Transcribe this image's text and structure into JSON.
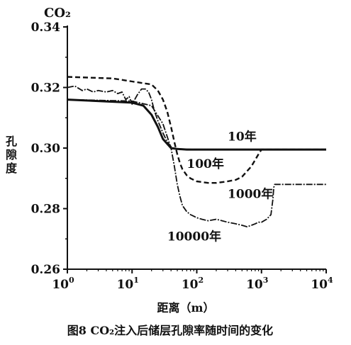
{
  "chart_data": {
    "type": "line",
    "title": "图8 CO₂注入后储层孔隙率随时间的变化",
    "corner_label": "CO₂",
    "ylabel": "孔隙度",
    "xlabel": "距离（m）",
    "xscale": "log",
    "xlim": [
      1,
      10000
    ],
    "ylim": [
      0.26,
      0.34
    ],
    "x_ticks": [
      {
        "value": 1,
        "base": "10",
        "exp": "0"
      },
      {
        "value": 10,
        "base": "10",
        "exp": "1"
      },
      {
        "value": 100,
        "base": "10",
        "exp": "2"
      },
      {
        "value": 1000,
        "base": "10",
        "exp": "3"
      },
      {
        "value": 10000,
        "base": "10",
        "exp": "4"
      }
    ],
    "y_ticks": [
      {
        "value": 0.26,
        "label": "0.26"
      },
      {
        "value": 0.28,
        "label": "0.28"
      },
      {
        "value": 0.3,
        "label": "0.30"
      },
      {
        "value": 0.32,
        "label": "0.32"
      },
      {
        "value": 0.34,
        "label": "0.34"
      }
    ],
    "series": [
      {
        "name": "10年",
        "style": "solid-thick",
        "x": [
          1,
          10,
          15,
          20,
          25,
          30,
          40,
          50,
          70,
          100,
          1000,
          10000
        ],
        "y": [
          0.316,
          0.315,
          0.314,
          0.311,
          0.307,
          0.303,
          0.3,
          0.2997,
          0.2995,
          0.2995,
          0.2995,
          0.2995
        ]
      },
      {
        "name": "100年",
        "style": "dashed",
        "x": [
          1,
          5,
          10,
          20,
          25,
          30,
          35,
          40,
          45,
          50,
          55,
          60,
          70,
          80,
          100,
          150,
          200,
          300,
          400,
          500,
          700,
          900,
          1000,
          10000
        ],
        "y": [
          0.3235,
          0.323,
          0.322,
          0.321,
          0.319,
          0.316,
          0.312,
          0.307,
          0.302,
          0.298,
          0.295,
          0.293,
          0.291,
          0.29,
          0.289,
          0.2885,
          0.2885,
          0.289,
          0.2895,
          0.2905,
          0.294,
          0.298,
          0.2995,
          0.2995
        ]
      },
      {
        "name": "1000年",
        "style": "dash-dot",
        "x": [
          1,
          1.3,
          1.7,
          2,
          2.5,
          3,
          4,
          5,
          6,
          7,
          8,
          9,
          10,
          12,
          14,
          16,
          18,
          20,
          22,
          25,
          30,
          35,
          40,
          45,
          50,
          100,
          1000,
          10000
        ],
        "y": [
          0.32,
          0.3205,
          0.319,
          0.3195,
          0.3185,
          0.319,
          0.3185,
          0.319,
          0.318,
          0.3185,
          0.316,
          0.317,
          0.3145,
          0.3175,
          0.3195,
          0.3195,
          0.3185,
          0.316,
          0.3125,
          0.309,
          0.305,
          0.302,
          0.3005,
          0.2998,
          0.2997,
          0.2995,
          0.2995,
          0.2995
        ]
      },
      {
        "name": "10000年",
        "style": "dash-dot",
        "x": [
          1,
          10,
          20,
          30,
          40,
          45,
          50,
          55,
          60,
          70,
          80,
          90,
          100,
          120,
          150,
          200,
          300,
          400,
          500,
          600,
          700,
          800,
          900,
          1000,
          1200,
          1400,
          1500,
          1550,
          1600,
          2000,
          5000,
          10000
        ],
        "y": [
          0.316,
          0.3155,
          0.314,
          0.308,
          0.3,
          0.294,
          0.288,
          0.284,
          0.281,
          0.279,
          0.278,
          0.2775,
          0.277,
          0.2765,
          0.276,
          0.2765,
          0.2755,
          0.275,
          0.2745,
          0.274,
          0.2745,
          0.275,
          0.2755,
          0.2755,
          0.2765,
          0.278,
          0.283,
          0.287,
          0.288,
          0.288,
          0.288,
          0.288
        ]
      }
    ],
    "annotations": [
      {
        "text": "10年",
        "x": 300,
        "y": 0.3025
      },
      {
        "text": "100年",
        "x": 70,
        "y": 0.2935
      },
      {
        "text": "1000年",
        "x": 300,
        "y": 0.2835
      },
      {
        "text": "10000年",
        "x": 35,
        "y": 0.2695
      }
    ],
    "grid": false,
    "legend": "none"
  }
}
